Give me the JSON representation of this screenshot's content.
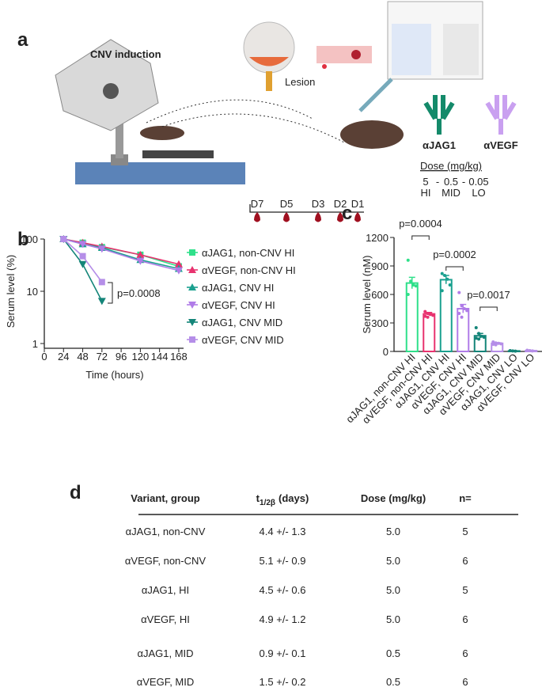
{
  "panels": [
    "a",
    "b",
    "c",
    "d"
  ],
  "panel_a": {
    "title": "CNV induction",
    "lesion": "Lesion",
    "antibodies": [
      "αJAG1",
      "αVEGF"
    ],
    "dose_title": "Dose (mg/kg)",
    "doses": [
      "5",
      "-",
      "0.5",
      "-",
      "0.05"
    ],
    "dose_groups": [
      "HI",
      "MID",
      "LO"
    ],
    "days": [
      "D7",
      "D5",
      "D3",
      "D2",
      "D1"
    ]
  },
  "chart_data": [
    {
      "type": "line",
      "x_label": "Time (hours)",
      "y_label": "Serum level (%)",
      "x": [
        24,
        48,
        72,
        120,
        168
      ],
      "xlim": [
        0,
        174
      ],
      "xticks": [
        0,
        24,
        48,
        72,
        96,
        120,
        144,
        168
      ],
      "ylim": [
        1,
        100
      ],
      "yticks": [
        1,
        10,
        100
      ],
      "log_y": true,
      "annotations": [
        "p=0.0008"
      ],
      "series": [
        {
          "name": "αJAG1, non-CNV HI",
          "color": "#2fe08a",
          "marker": "square",
          "values": [
            100,
            85,
            70,
            50,
            30
          ]
        },
        {
          "name": "αVEGF, non-CNV HI",
          "color": "#e8336f",
          "marker": "triangle-up",
          "values": [
            100,
            85,
            72,
            50,
            33
          ]
        },
        {
          "name": "αJAG1, CNV HI",
          "color": "#1aa08f",
          "marker": "triangle-up",
          "values": [
            100,
            80,
            68,
            40,
            27
          ]
        },
        {
          "name": "αVEGF, CNV HI",
          "color": "#b07ce8",
          "marker": "triangle-down",
          "values": [
            100,
            80,
            65,
            38,
            25
          ]
        },
        {
          "name": "αJAG1, CNV MID",
          "color": "#148579",
          "marker": "triangle-down",
          "values": [
            100,
            33,
            6.5,
            null,
            null
          ]
        },
        {
          "name": "αVEGF, CNV MID",
          "color": "#b58ee8",
          "marker": "square",
          "values": [
            100,
            47,
            15,
            null,
            null
          ]
        }
      ]
    },
    {
      "type": "bar",
      "y_label": "Serum level (nM)",
      "categories": [
        "αJAG1, non-CNV HI",
        "αVEGF, non-CNV HI",
        "αJAG1, CNV HI",
        "αVEGF, CNV HI",
        "αJAG1, CNV MID",
        "αVEGF, CNV MID",
        "αJAG1, CNV LO",
        "αVEGF, CNV LO"
      ],
      "colors": [
        "#2fe08a",
        "#e8336f",
        "#1aa08f",
        "#b07ce8",
        "#148579",
        "#b58ee8",
        "#148579",
        "#b58ee8"
      ],
      "values": [
        720,
        395,
        755,
        450,
        165,
        85,
        5,
        8
      ],
      "errors": [
        60,
        15,
        45,
        45,
        25,
        8,
        2,
        3
      ],
      "points": [
        [
          960,
          740,
          700,
          690,
          600
        ],
        [
          420,
          400,
          390,
          380,
          370,
          360
        ],
        [
          820,
          800,
          760,
          700,
          640
        ],
        [
          620,
          480,
          450,
          430,
          400,
          360
        ],
        [
          250,
          190,
          160,
          150,
          140,
          130
        ],
        [
          100,
          90,
          85,
          80,
          75,
          70
        ],
        [
          8,
          5,
          3
        ],
        [
          12,
          8,
          5
        ]
      ],
      "ylim": [
        0,
        1200
      ],
      "yticks": [
        0,
        300,
        600,
        900,
        1200
      ],
      "annotations": [
        "p=0.0004",
        "p=0.0002",
        "p=0.0017"
      ]
    }
  ],
  "table": {
    "header": {
      "variant": "Variant, group",
      "halflife": {
        "symbol": "t",
        "subscript": "1/2β",
        "unit": "(days)"
      },
      "dose": "Dose (mg/kg)",
      "n": "n="
    },
    "rows": [
      [
        "αJAG1, non-CNV",
        "4.4 +/- 1.3",
        "5.0",
        "5"
      ],
      [
        "αVEGF, non-CNV",
        "5.1 +/- 0.9",
        "5.0",
        "6"
      ],
      [
        "αJAG1, HI",
        "4.5 +/- 0.6",
        "5.0",
        "5"
      ],
      [
        "αVEGF, HI",
        "4.9 +/- 1.2",
        "5.0",
        "6"
      ],
      [
        "αJAG1, MID",
        "0.9 +/- 0.1",
        "0.5",
        "6"
      ],
      [
        "αVEGF, MID",
        "1.5 +/- 0.2",
        "0.5",
        "6"
      ]
    ]
  }
}
